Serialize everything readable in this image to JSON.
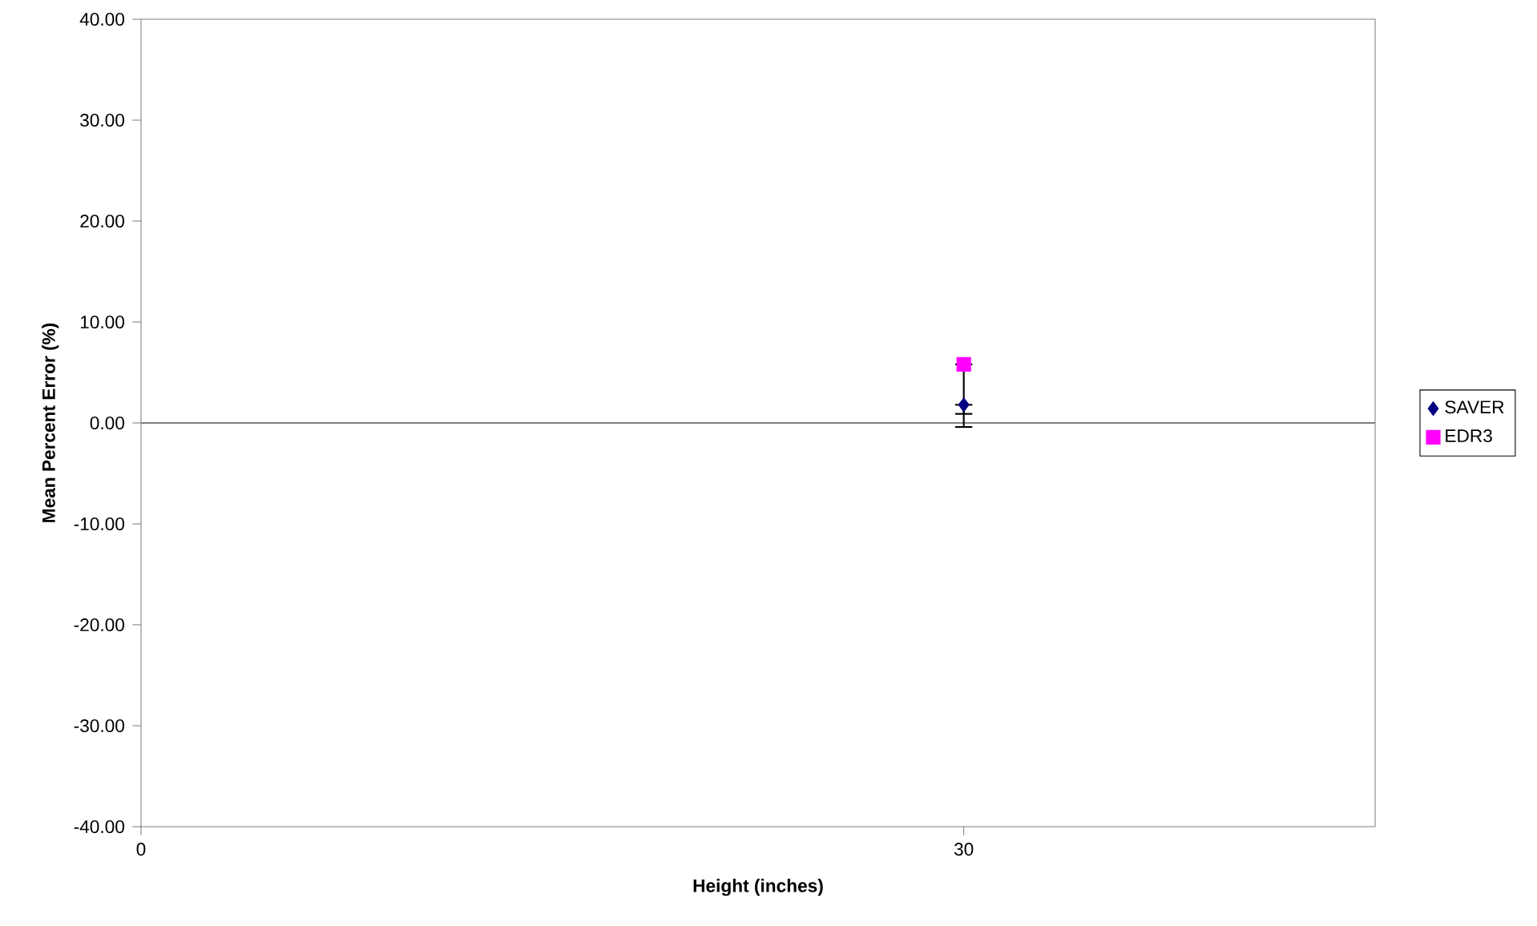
{
  "chart_data": {
    "type": "scatter",
    "xlabel": "Height (inches)",
    "ylabel": "Mean Percent Error (%)",
    "xlim": [
      0,
      45
    ],
    "xticks": [
      0,
      30
    ],
    "ylim": [
      -40,
      40
    ],
    "yticks": [
      {
        "value": -40,
        "label": "-40.00"
      },
      {
        "value": -30,
        "label": "-30.00"
      },
      {
        "value": -20,
        "label": "-20.00"
      },
      {
        "value": -10,
        "label": "-10.00"
      },
      {
        "value": 0,
        "label": "0.00"
      },
      {
        "value": 10,
        "label": "10.00"
      },
      {
        "value": 20,
        "label": "20.00"
      },
      {
        "value": 30,
        "label": "30.00"
      },
      {
        "value": 40,
        "label": "40.00"
      }
    ],
    "grid": false,
    "legend": "right",
    "ref_lines": [
      {
        "axis": "y",
        "value": 0,
        "color": "#808080"
      }
    ],
    "series": [
      {
        "name": "SAVER",
        "color": "#000080",
        "marker": "diamond",
        "x": [
          30
        ],
        "values": [
          1.8
        ],
        "errors": [
          [
            -0.4,
            1.8
          ]
        ]
      },
      {
        "name": "EDR3",
        "color": "#ff00ff",
        "marker": "square",
        "x": [
          30
        ],
        "values": [
          5.8
        ],
        "errors": [
          [
            0.9,
            5.8
          ]
        ]
      }
    ]
  }
}
